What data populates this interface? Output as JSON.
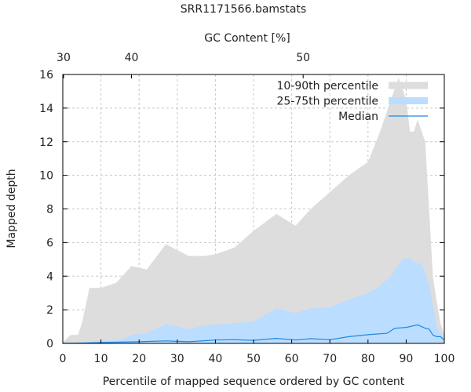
{
  "chart_data": {
    "type": "area",
    "title": "SRR1171566.bamstats",
    "xlabel": "Percentile of mapped sequence ordered by GC content",
    "ylabel": "Mapped depth",
    "x2label": "GC Content [%]",
    "xlim": [
      0,
      100
    ],
    "ylim": [
      0,
      16
    ],
    "xticks": [
      "0",
      "10",
      "20",
      "30",
      "40",
      "50",
      "60",
      "70",
      "80",
      "90",
      "100"
    ],
    "yticks": [
      "0",
      "2",
      "4",
      "6",
      "8",
      "10",
      "12",
      "14",
      "16"
    ],
    "x2ticks": [
      {
        "label": "30",
        "at_percentile": 0.2
      },
      {
        "label": "40",
        "at_percentile": 18
      },
      {
        "label": "50",
        "at_percentile": 63
      }
    ],
    "grid": true,
    "legend_position": "top-right",
    "series": [
      {
        "name": "10-90th percentile",
        "kind": "band",
        "color": "#dddddd",
        "x": [
          0,
          2,
          4,
          5,
          7,
          10,
          14,
          18,
          22,
          27,
          33,
          37,
          40,
          45,
          50,
          56,
          61,
          65,
          70,
          75,
          80,
          83,
          86,
          88,
          90,
          91,
          92,
          93,
          95,
          96,
          97,
          98,
          99,
          100
        ],
        "upper": [
          0.05,
          0.5,
          0.5,
          1.2,
          3.3,
          3.3,
          3.6,
          4.6,
          4.4,
          5.9,
          5.2,
          5.2,
          5.3,
          5.7,
          6.7,
          7.7,
          7.0,
          8.0,
          9.0,
          10.0,
          10.8,
          12.5,
          14.5,
          15.8,
          14.5,
          12.6,
          12.6,
          13.3,
          12.0,
          8.0,
          4.0,
          2.5,
          1.2,
          0.5
        ],
        "lower": [
          0,
          0,
          0,
          0,
          0,
          0,
          0,
          0,
          0,
          0,
          0,
          0,
          0,
          0,
          0,
          0,
          0,
          0,
          0,
          0,
          0,
          0,
          0,
          0,
          0,
          0,
          0,
          0,
          0,
          0,
          0,
          0,
          0,
          0
        ]
      },
      {
        "name": "25-75th percentile",
        "kind": "band",
        "color": "#bbddff",
        "x": [
          0,
          5,
          10,
          15,
          18,
          22,
          27,
          33,
          38,
          45,
          50,
          56,
          61,
          65,
          70,
          75,
          80,
          83,
          86,
          89,
          91,
          93,
          94,
          96,
          98,
          100
        ],
        "upper": [
          0,
          0.05,
          0.15,
          0.2,
          0.5,
          0.6,
          1.15,
          0.85,
          1.1,
          1.2,
          1.3,
          2.1,
          1.8,
          2.1,
          2.15,
          2.6,
          3.0,
          3.4,
          4.0,
          5.0,
          5.1,
          4.7,
          4.8,
          3.5,
          1.0,
          0.2
        ],
        "lower": [
          0,
          0,
          0,
          0,
          0,
          0,
          0,
          0,
          0,
          0,
          0,
          0,
          0,
          0,
          0,
          0,
          0,
          0,
          0,
          0,
          0,
          0,
          0,
          0,
          0,
          0
        ]
      },
      {
        "name": "Median",
        "kind": "line",
        "color": "#1e88e5",
        "x": [
          0,
          5,
          10,
          20,
          27,
          33,
          40,
          45,
          50,
          56,
          61,
          65,
          70,
          75,
          80,
          85,
          87,
          90,
          93,
          95,
          96,
          97,
          98,
          99,
          100
        ],
        "values": [
          0,
          0.02,
          0.05,
          0.1,
          0.15,
          0.1,
          0.2,
          0.22,
          0.18,
          0.3,
          0.2,
          0.28,
          0.22,
          0.4,
          0.52,
          0.6,
          0.9,
          0.95,
          1.1,
          0.9,
          0.85,
          0.5,
          0.4,
          0.4,
          0.2
        ]
      }
    ]
  }
}
